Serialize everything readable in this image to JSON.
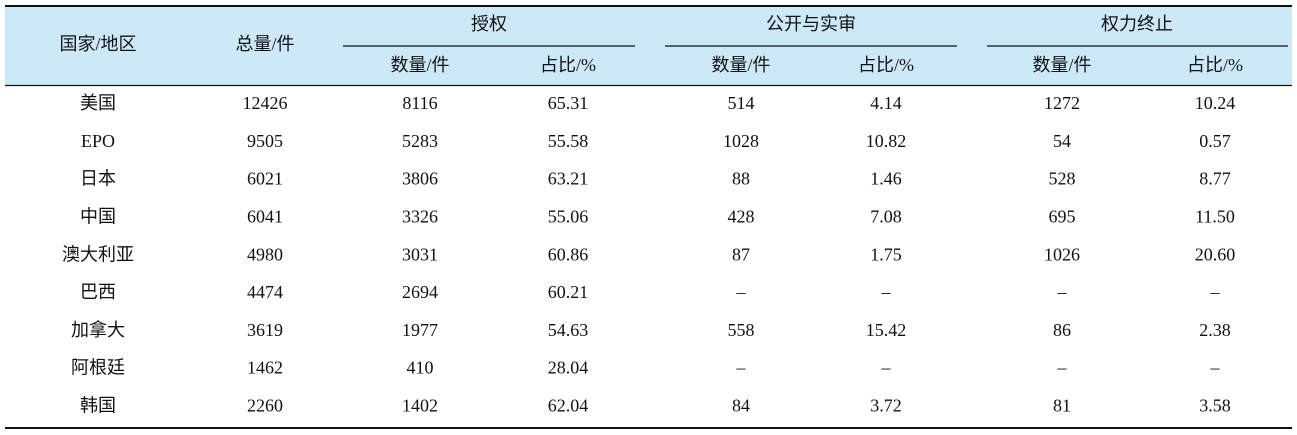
{
  "table": {
    "header": {
      "country": "国家/地区",
      "total": "总量/件",
      "groups": [
        "授权",
        "公开与实审",
        "权力终止"
      ],
      "subheaders": [
        "数量/件",
        "占比/%",
        "数量/件",
        "占比/%",
        "数量/件",
        "占比/%"
      ]
    },
    "rows": [
      [
        "美国",
        "12426",
        "8116",
        "65.31",
        "514",
        "4.14",
        "1272",
        "10.24"
      ],
      [
        "EPO",
        "9505",
        "5283",
        "55.58",
        "1028",
        "10.82",
        "54",
        "0.57"
      ],
      [
        "日本",
        "6021",
        "3806",
        "63.21",
        "88",
        "1.46",
        "528",
        "8.77"
      ],
      [
        "中国",
        "6041",
        "3326",
        "55.06",
        "428",
        "7.08",
        "695",
        "11.50"
      ],
      [
        "澳大利亚",
        "4980",
        "3031",
        "60.86",
        "87",
        "1.75",
        "1026",
        "20.60"
      ],
      [
        "巴西",
        "4474",
        "2694",
        "60.21",
        "–",
        "–",
        "–",
        "–"
      ],
      [
        "加拿大",
        "3619",
        "1977",
        "54.63",
        "558",
        "15.42",
        "86",
        "2.38"
      ],
      [
        "阿根廷",
        "1462",
        "410",
        "28.04",
        "–",
        "–",
        "–",
        "–"
      ],
      [
        "韩国",
        "2260",
        "1402",
        "62.04",
        "84",
        "3.72",
        "81",
        "3.58"
      ]
    ]
  }
}
